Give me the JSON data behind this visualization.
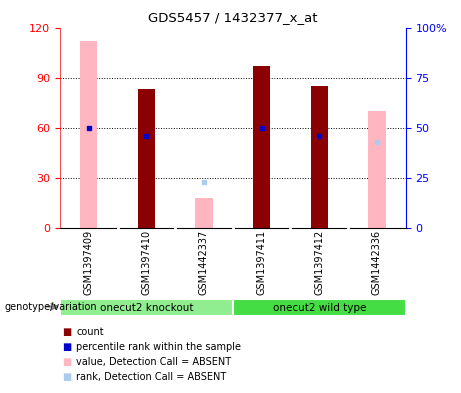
{
  "title": "GDS5457 / 1432377_x_at",
  "samples": [
    "GSM1397409",
    "GSM1397410",
    "GSM1442337",
    "GSM1397411",
    "GSM1397412",
    "GSM1442336"
  ],
  "pink_values": [
    112,
    0,
    18,
    0,
    0,
    70
  ],
  "dark_red_values": [
    0,
    83,
    0,
    97,
    85,
    0
  ],
  "blue_rank": [
    50,
    46,
    null,
    50,
    46,
    null
  ],
  "light_blue_rank": [
    null,
    null,
    23,
    null,
    null,
    43
  ],
  "ylim_left": [
    0,
    120
  ],
  "ylim_right": [
    0,
    100
  ],
  "yticks_left": [
    0,
    30,
    60,
    90,
    120
  ],
  "yticks_right": [
    0,
    25,
    50,
    75,
    100
  ],
  "ytick_labels_left": [
    "0",
    "30",
    "60",
    "90",
    "120"
  ],
  "ytick_labels_right": [
    "0",
    "25",
    "50",
    "75",
    "100%"
  ],
  "bar_width": 0.3,
  "pink_color": "#FFB6C1",
  "dark_red_color": "#8B0000",
  "blue_color": "#0000CC",
  "light_blue_color": "#AACCEE",
  "grid_color": "#000000",
  "label_bg": "#C8C8C8",
  "group1_color": "#90EE90",
  "group2_color": "#44DD44",
  "group1_label": "onecut2 knockout",
  "group2_label": "onecut2 wild type",
  "geno_label": "genotype/variation",
  "legend_items": [
    {
      "label": "count",
      "color": "#8B0000"
    },
    {
      "label": "percentile rank within the sample",
      "color": "#0000CC"
    },
    {
      "label": "value, Detection Call = ABSENT",
      "color": "#FFB6C1"
    },
    {
      "label": "rank, Detection Call = ABSENT",
      "color": "#AACCEE"
    }
  ]
}
